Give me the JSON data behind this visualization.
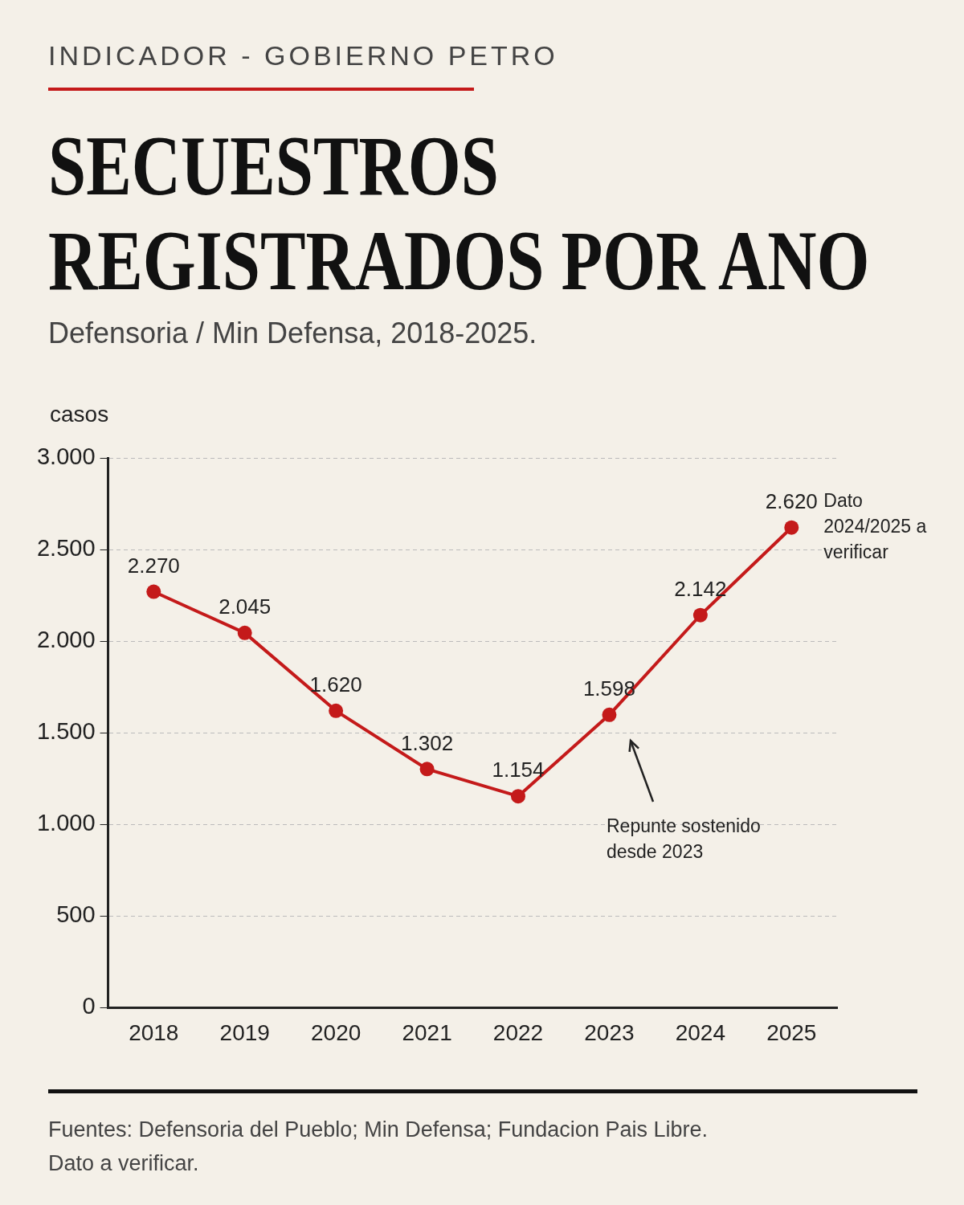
{
  "chart_data": {
    "type": "line",
    "title": "SECUESTROS REGISTRADOS POR ANO",
    "subtitle": "Defensoria / Min Defensa, 2018-2025.",
    "ylabel": "casos",
    "categories": [
      "2018",
      "2019",
      "2020",
      "2021",
      "2022",
      "2023",
      "2024",
      "2025"
    ],
    "series": [
      {
        "color": "#c41a1a",
        "values": [
          2270,
          2045,
          1620,
          1302,
          1154,
          1598,
          2142,
          2620
        ]
      }
    ],
    "ylim": [
      0,
      3000
    ],
    "yticks": [
      {
        "value": 0,
        "label": "0"
      },
      {
        "value": 500,
        "label": "500"
      },
      {
        "value": 1000,
        "label": "1.000"
      },
      {
        "value": 1500,
        "label": "1.500"
      },
      {
        "value": 2000,
        "label": "2.000"
      },
      {
        "value": 2500,
        "label": "2.500"
      },
      {
        "value": 3000,
        "label": "3.000"
      }
    ],
    "value_labels": [
      "2.270",
      "2.045",
      "1.620",
      "1.302",
      "1.154",
      "1.598",
      "2.142",
      "2.620"
    ],
    "grid": "y",
    "marker": "circle",
    "line_style": "solid",
    "legend": false,
    "annotations": [
      "INDICADOR - GOBIERNO PETRO",
      {
        "text": "Dato 2024/2025 a verificar",
        "x": "2025",
        "y": 2620
      },
      "Repunte sostenido desde 2023",
      "Fuentes: Defensoria del Pueblo; Min Defensa; Fundacion Pais Libre.",
      "Dato a verificar."
    ]
  }
}
